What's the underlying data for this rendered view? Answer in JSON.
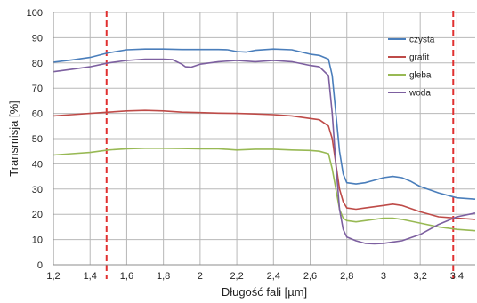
{
  "chart_data": {
    "type": "line",
    "title": "",
    "xlabel": "Długość fali [µm]",
    "ylabel": "Transmisja [%]",
    "xlim": [
      1.2,
      3.5
    ],
    "ylim": [
      0,
      100
    ],
    "x_ticks": [
      "1,2",
      "1,4",
      "1,6",
      "1,8",
      "2",
      "2,2",
      "2,4",
      "2,6",
      "2,8",
      "3",
      "3,2",
      "3,4"
    ],
    "y_ticks": [
      "0",
      "10",
      "20",
      "30",
      "40",
      "50",
      "60",
      "70",
      "80",
      "90",
      "100"
    ],
    "grid": true,
    "legend_position": "top-right",
    "series": [
      {
        "name": "czysta",
        "color": "#4a7ebb",
        "points": [
          [
            1.2,
            80.3
          ],
          [
            1.3,
            81.2
          ],
          [
            1.4,
            82.2
          ],
          [
            1.5,
            84.0
          ],
          [
            1.6,
            85.2
          ],
          [
            1.7,
            85.5
          ],
          [
            1.8,
            85.5
          ],
          [
            1.9,
            85.3
          ],
          [
            2.0,
            85.3
          ],
          [
            2.1,
            85.3
          ],
          [
            2.15,
            85.2
          ],
          [
            2.2,
            84.5
          ],
          [
            2.25,
            84.3
          ],
          [
            2.3,
            85.0
          ],
          [
            2.4,
            85.5
          ],
          [
            2.5,
            85.2
          ],
          [
            2.6,
            83.5
          ],
          [
            2.65,
            83.0
          ],
          [
            2.7,
            81.5
          ],
          [
            2.72,
            75.0
          ],
          [
            2.74,
            60.0
          ],
          [
            2.76,
            45.0
          ],
          [
            2.78,
            36.0
          ],
          [
            2.8,
            32.5
          ],
          [
            2.85,
            32.0
          ],
          [
            2.9,
            32.5
          ],
          [
            2.95,
            33.5
          ],
          [
            3.0,
            34.5
          ],
          [
            3.05,
            35.0
          ],
          [
            3.1,
            34.5
          ],
          [
            3.15,
            33.0
          ],
          [
            3.2,
            31.0
          ],
          [
            3.3,
            28.5
          ],
          [
            3.4,
            26.5
          ],
          [
            3.5,
            26.0
          ]
        ]
      },
      {
        "name": "grafit",
        "color": "#be4b48",
        "points": [
          [
            1.2,
            59.0
          ],
          [
            1.3,
            59.5
          ],
          [
            1.4,
            60.0
          ],
          [
            1.5,
            60.5
          ],
          [
            1.6,
            61.0
          ],
          [
            1.7,
            61.2
          ],
          [
            1.8,
            61.0
          ],
          [
            1.9,
            60.5
          ],
          [
            2.0,
            60.3
          ],
          [
            2.1,
            60.1
          ],
          [
            2.2,
            60.0
          ],
          [
            2.3,
            59.8
          ],
          [
            2.4,
            59.5
          ],
          [
            2.5,
            59.0
          ],
          [
            2.6,
            58.0
          ],
          [
            2.65,
            57.5
          ],
          [
            2.7,
            55.0
          ],
          [
            2.72,
            50.0
          ],
          [
            2.74,
            40.0
          ],
          [
            2.76,
            30.0
          ],
          [
            2.78,
            25.0
          ],
          [
            2.8,
            22.5
          ],
          [
            2.85,
            22.0
          ],
          [
            2.9,
            22.5
          ],
          [
            3.0,
            23.5
          ],
          [
            3.05,
            24.0
          ],
          [
            3.1,
            23.5
          ],
          [
            3.2,
            21.0
          ],
          [
            3.3,
            19.0
          ],
          [
            3.4,
            18.5
          ],
          [
            3.5,
            18.0
          ]
        ]
      },
      {
        "name": "gleba",
        "color": "#98b954",
        "points": [
          [
            1.2,
            43.5
          ],
          [
            1.3,
            44.0
          ],
          [
            1.4,
            44.5
          ],
          [
            1.5,
            45.5
          ],
          [
            1.6,
            46.0
          ],
          [
            1.7,
            46.2
          ],
          [
            1.8,
            46.2
          ],
          [
            1.9,
            46.1
          ],
          [
            2.0,
            46.0
          ],
          [
            2.1,
            46.0
          ],
          [
            2.2,
            45.5
          ],
          [
            2.3,
            45.8
          ],
          [
            2.4,
            45.8
          ],
          [
            2.5,
            45.5
          ],
          [
            2.6,
            45.3
          ],
          [
            2.65,
            45.0
          ],
          [
            2.7,
            44.0
          ],
          [
            2.72,
            38.0
          ],
          [
            2.74,
            30.0
          ],
          [
            2.76,
            22.0
          ],
          [
            2.78,
            18.5
          ],
          [
            2.8,
            17.5
          ],
          [
            2.85,
            17.0
          ],
          [
            2.9,
            17.5
          ],
          [
            3.0,
            18.5
          ],
          [
            3.05,
            18.5
          ],
          [
            3.1,
            18.0
          ],
          [
            3.2,
            16.5
          ],
          [
            3.3,
            15.0
          ],
          [
            3.4,
            14.0
          ],
          [
            3.5,
            13.5
          ]
        ]
      },
      {
        "name": "woda",
        "color": "#7d60a0",
        "points": [
          [
            1.2,
            76.5
          ],
          [
            1.3,
            77.5
          ],
          [
            1.4,
            78.5
          ],
          [
            1.5,
            80.0
          ],
          [
            1.6,
            81.0
          ],
          [
            1.7,
            81.5
          ],
          [
            1.8,
            81.5
          ],
          [
            1.85,
            81.3
          ],
          [
            1.9,
            79.5
          ],
          [
            1.92,
            78.5
          ],
          [
            1.95,
            78.3
          ],
          [
            2.0,
            79.5
          ],
          [
            2.1,
            80.5
          ],
          [
            2.2,
            81.0
          ],
          [
            2.3,
            80.5
          ],
          [
            2.4,
            81.0
          ],
          [
            2.5,
            80.5
          ],
          [
            2.6,
            79.0
          ],
          [
            2.65,
            78.5
          ],
          [
            2.7,
            75.0
          ],
          [
            2.72,
            60.0
          ],
          [
            2.74,
            40.0
          ],
          [
            2.76,
            22.0
          ],
          [
            2.78,
            14.0
          ],
          [
            2.8,
            11.0
          ],
          [
            2.85,
            9.5
          ],
          [
            2.9,
            8.5
          ],
          [
            2.95,
            8.3
          ],
          [
            3.0,
            8.5
          ],
          [
            3.05,
            9.0
          ],
          [
            3.1,
            9.5
          ],
          [
            3.2,
            12.0
          ],
          [
            3.3,
            16.0
          ],
          [
            3.4,
            19.0
          ],
          [
            3.5,
            20.5
          ]
        ]
      }
    ],
    "vertical_markers": [
      {
        "x": 1.49,
        "color": "#e03030",
        "style": "dashed"
      },
      {
        "x": 3.38,
        "color": "#e03030",
        "style": "dashed"
      }
    ]
  }
}
